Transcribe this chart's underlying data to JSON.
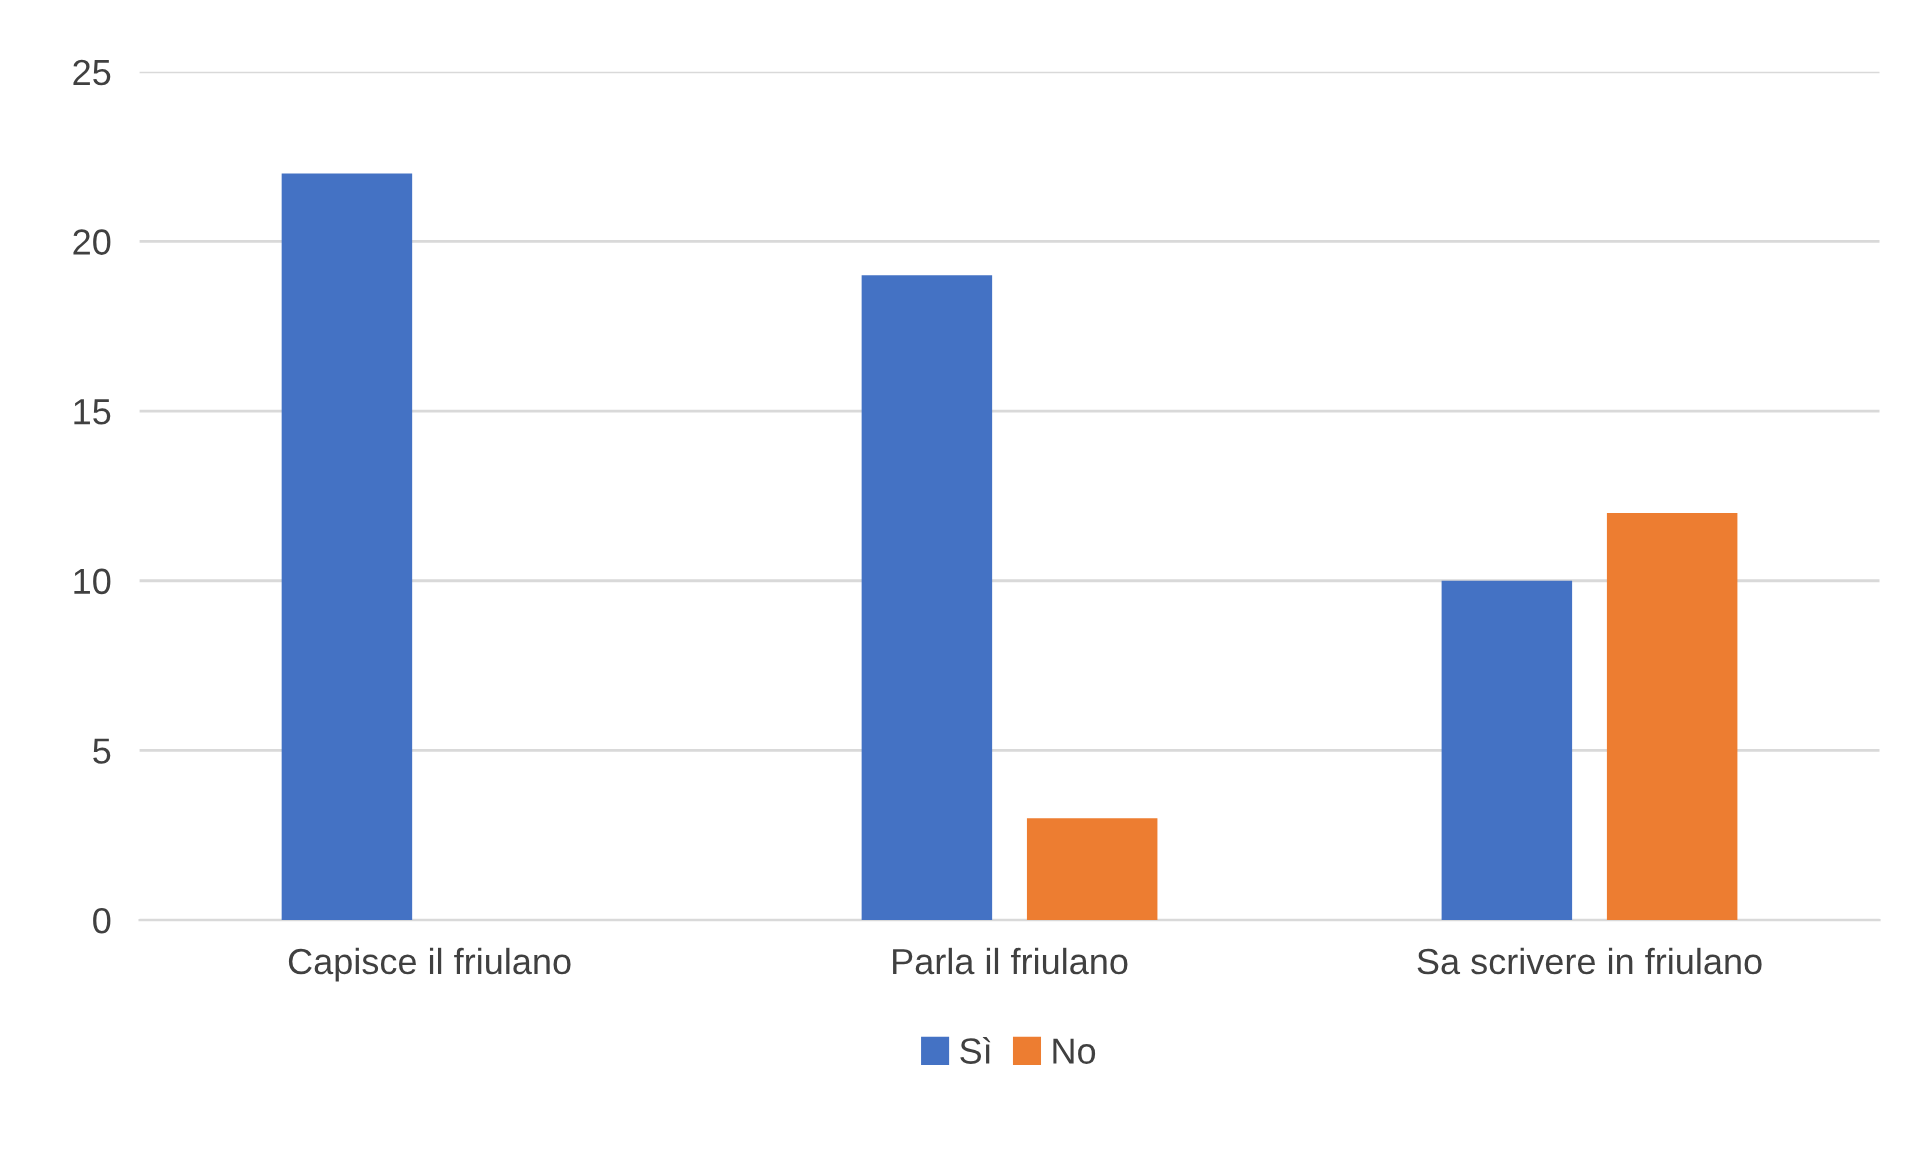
{
  "chart_data": {
    "type": "bar",
    "categories": [
      "Capisce il friulano",
      "Parla il friulano",
      "Sa scrivere in friulano"
    ],
    "series": [
      {
        "name": "Sì",
        "color": "#4472c4",
        "values": [
          22,
          19,
          10
        ]
      },
      {
        "name": "No",
        "color": "#ed7d31",
        "values": [
          0,
          3,
          12
        ]
      }
    ],
    "ylim": [
      0,
      25
    ],
    "yticks": [
      0,
      5,
      10,
      15,
      20,
      25
    ],
    "grid": "y",
    "legend": "bottom"
  }
}
